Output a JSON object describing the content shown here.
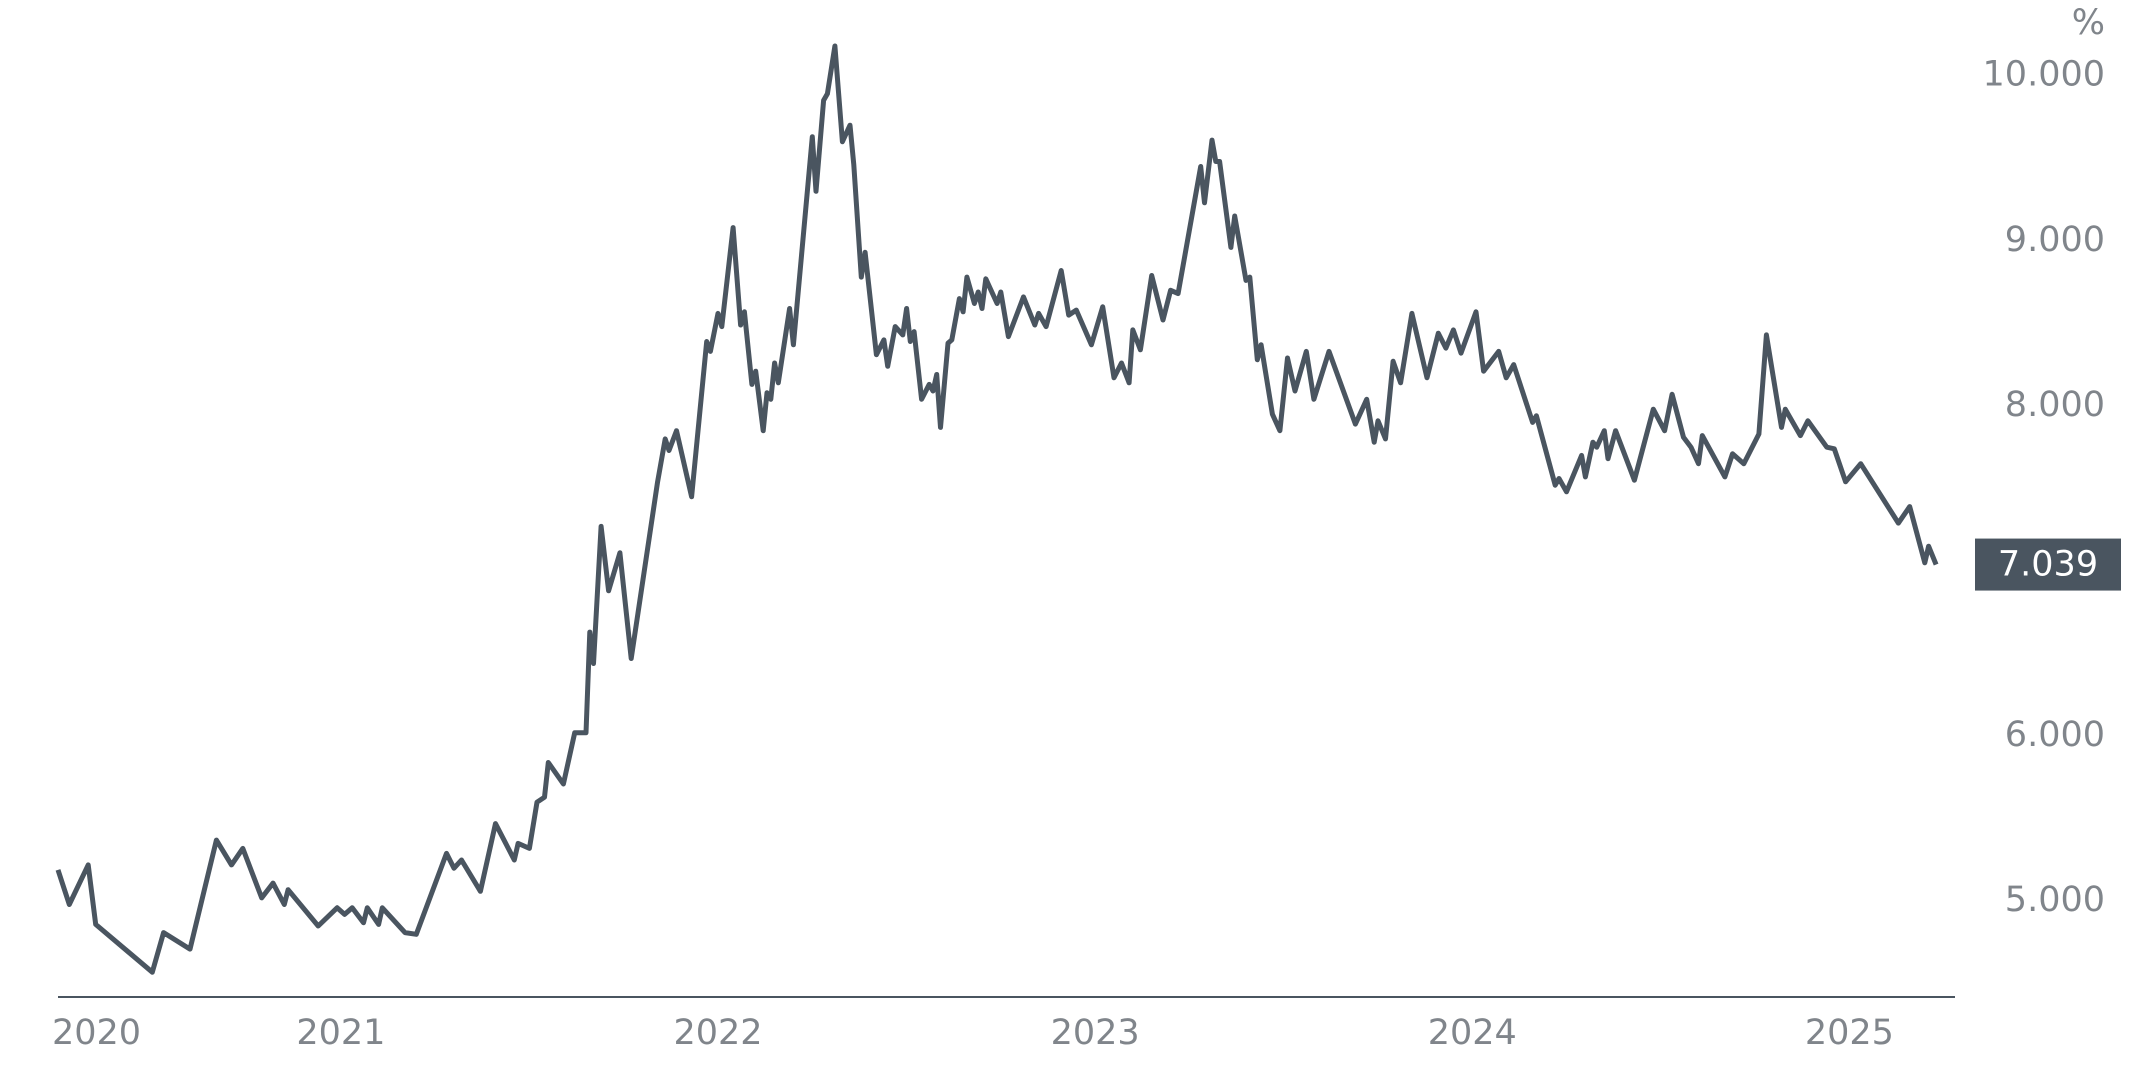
{
  "chart_data": {
    "type": "line",
    "y_unit": "%",
    "x": [
      2020.25,
      2020.28,
      2020.33,
      2020.35,
      2020.5,
      2020.53,
      2020.6,
      2020.67,
      2020.71,
      2020.74,
      2020.79,
      2020.82,
      2020.85,
      2020.86,
      2020.94,
      2020.99,
      2021.01,
      2021.03,
      2021.06,
      2021.07,
      2021.1,
      2021.11,
      2021.17,
      2021.2,
      2021.28,
      2021.3,
      2021.32,
      2021.37,
      2021.41,
      2021.46,
      2021.47,
      2021.5,
      2021.52,
      2021.54,
      2021.55,
      2021.59,
      2021.62,
      2021.65,
      2021.66,
      2021.67,
      2021.69,
      2021.71,
      2021.74,
      2021.77,
      2021.84,
      2021.86,
      2021.87,
      2021.89,
      2021.93,
      2021.97,
      2021.98,
      2022.0,
      2022.01,
      2022.04,
      2022.06,
      2022.07,
      2022.09,
      2022.1,
      2022.12,
      2022.13,
      2022.14,
      2022.15,
      2022.16,
      2022.19,
      2022.2,
      2022.25,
      2022.26,
      2022.28,
      2022.29,
      2022.31,
      2022.33,
      2022.35,
      2022.36,
      2022.38,
      2022.39,
      2022.42,
      2022.44,
      2022.45,
      2022.47,
      2022.49,
      2022.5,
      2022.51,
      2022.52,
      2022.54,
      2022.56,
      2022.57,
      2022.58,
      2022.59,
      2022.61,
      2022.62,
      2022.64,
      2022.65,
      2022.66,
      2022.68,
      2022.69,
      2022.7,
      2022.71,
      2022.74,
      2022.75,
      2022.77,
      2022.81,
      2022.84,
      2022.85,
      2022.87,
      2022.91,
      2022.93,
      2022.95,
      2022.99,
      2023.02,
      2023.05,
      2023.07,
      2023.09,
      2023.1,
      2023.12,
      2023.15,
      2023.18,
      2023.2,
      2023.22,
      2023.28,
      2023.29,
      2023.31,
      2023.32,
      2023.33,
      2023.36,
      2023.37,
      2023.4,
      2023.41,
      2023.43,
      2023.44,
      2023.47,
      2023.49,
      2023.51,
      2023.53,
      2023.56,
      2023.58,
      2023.62,
      2023.69,
      2023.72,
      2023.74,
      2023.75,
      2023.77,
      2023.79,
      2023.81,
      2023.84,
      2023.88,
      2023.91,
      2023.93,
      2023.95,
      2023.97,
      2024.01,
      2024.03,
      2024.07,
      2024.09,
      2024.11,
      2024.16,
      2024.17,
      2024.22,
      2024.23,
      2024.25,
      2024.29,
      2024.3,
      2024.32,
      2024.33,
      2024.35,
      2024.36,
      2024.38,
      2024.43,
      2024.48,
      2024.51,
      2024.53,
      2024.56,
      2024.58,
      2024.6,
      2024.61,
      2024.67,
      2024.69,
      2024.72,
      2024.76,
      2024.78,
      2024.82,
      2024.83,
      2024.87,
      2024.89,
      2024.94,
      2024.96,
      2024.99,
      2025.03,
      2025.13,
      2025.16,
      2025.2,
      2025.21,
      2025.23
    ],
    "series": [
      {
        "color": "#4a5560",
        "values": [
          5.19,
          4.98,
          5.22,
          4.86,
          4.57,
          4.81,
          4.71,
          5.37,
          5.22,
          5.32,
          5.02,
          5.11,
          4.98,
          5.07,
          4.85,
          4.96,
          4.92,
          4.96,
          4.87,
          4.96,
          4.86,
          4.96,
          4.81,
          4.8,
          5.29,
          5.2,
          5.25,
          5.06,
          5.47,
          5.25,
          5.35,
          5.32,
          5.6,
          5.63,
          5.84,
          5.71,
          6.02,
          6.02,
          6.63,
          6.44,
          7.27,
          6.88,
          7.11,
          6.47,
          7.54,
          7.8,
          7.73,
          7.85,
          7.45,
          8.39,
          8.33,
          8.56,
          8.48,
          9.08,
          8.49,
          8.57,
          8.13,
          8.21,
          7.85,
          8.08,
          8.04,
          8.26,
          8.14,
          8.59,
          8.37,
          9.63,
          9.3,
          9.85,
          9.89,
          10.18,
          9.6,
          9.7,
          9.46,
          8.78,
          8.93,
          8.31,
          8.4,
          8.24,
          8.48,
          8.43,
          8.59,
          8.39,
          8.45,
          8.04,
          8.13,
          8.09,
          8.19,
          7.87,
          8.38,
          8.4,
          8.65,
          8.57,
          8.78,
          8.62,
          8.69,
          8.59,
          8.77,
          8.62,
          8.69,
          8.42,
          8.66,
          8.49,
          8.56,
          8.48,
          8.82,
          8.55,
          8.58,
          8.37,
          8.6,
          8.17,
          8.26,
          8.14,
          8.46,
          8.34,
          8.79,
          8.52,
          8.7,
          8.68,
          9.45,
          9.23,
          9.61,
          9.48,
          9.48,
          8.96,
          9.15,
          8.76,
          8.78,
          8.28,
          8.37,
          7.95,
          7.85,
          8.29,
          8.09,
          8.33,
          8.04,
          8.33,
          7.89,
          8.04,
          7.78,
          7.91,
          7.8,
          8.27,
          8.14,
          8.56,
          8.17,
          8.44,
          8.35,
          8.46,
          8.32,
          8.57,
          8.21,
          8.33,
          8.17,
          8.25,
          7.9,
          7.94,
          7.52,
          7.56,
          7.48,
          7.7,
          7.57,
          7.78,
          7.75,
          7.85,
          7.68,
          7.85,
          7.55,
          7.98,
          7.85,
          8.07,
          7.81,
          7.75,
          7.65,
          7.82,
          7.57,
          7.71,
          7.65,
          7.83,
          8.43,
          7.87,
          7.98,
          7.82,
          7.91,
          7.75,
          7.74,
          7.54,
          7.65,
          7.29,
          7.39,
          7.05,
          7.15,
          7.039
        ]
      }
    ],
    "xlim": [
      2020.25,
      2025.28
    ],
    "xticks": [
      2020,
      2021,
      2022,
      2023,
      2024,
      2025
    ],
    "ylim": [
      4.42,
      10.21
    ],
    "yticks": [
      {
        "value": 5,
        "label": "5.000"
      },
      {
        "value": 6,
        "label": "6.000"
      },
      {
        "value": 8,
        "label": "8.000"
      },
      {
        "value": 9,
        "label": "9.000"
      },
      {
        "value": 10,
        "label": "10.000"
      }
    ]
  }
}
